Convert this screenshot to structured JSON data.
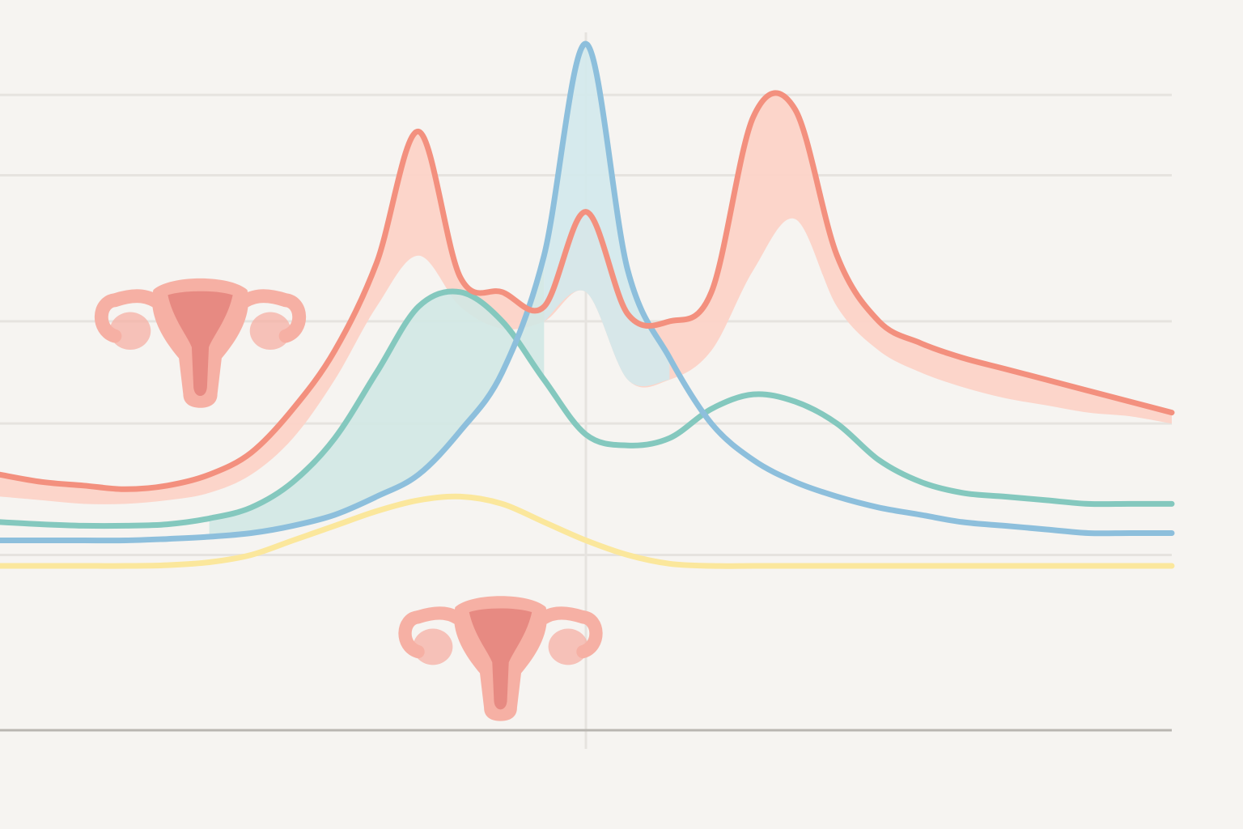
{
  "colors": {
    "background": "#f6f4f1",
    "gridline": "#e6e3df",
    "baseline": "#b9b6b1",
    "estrogen": "#f3907e",
    "estrogen_band": "#fcd3c7",
    "lh": "#8dbfdc",
    "lh_fill": "#d3e9ec",
    "progesterone": "#84c8be",
    "progesterone_fill": "#d2e8e4",
    "fsh": "#fbe79c",
    "uterus_outer": "#f6b0a4",
    "uterus_inner": "#e4847c"
  },
  "icons": [
    "uterus-icon",
    "uterus-icon"
  ],
  "chart_data": {
    "type": "line",
    "title": "",
    "xlabel": "",
    "ylabel": "",
    "xlim": [
      0,
      28
    ],
    "ylim": [
      0,
      100
    ],
    "grid": true,
    "legend": "none",
    "gridlines_y": [
      24,
      42,
      56,
      76,
      87
    ],
    "marker_x": 14,
    "x": [
      0,
      1,
      2,
      3,
      4,
      5,
      6,
      7,
      8,
      9,
      10,
      11,
      12,
      13,
      14,
      15,
      16,
      17,
      18,
      19,
      20,
      21,
      22,
      23,
      24,
      25,
      26,
      27,
      28
    ],
    "series": [
      {
        "key": "estrogen_upper",
        "values": [
          35,
          34,
          33.5,
          33,
          33.5,
          35,
          38,
          44,
          52,
          64,
          82,
          62,
          60,
          58,
          71,
          57,
          56,
          60,
          84,
          85,
          65,
          56,
          53,
          51,
          49.5,
          48,
          46.5,
          45,
          43.5
        ]
      },
      {
        "key": "estrogen_lower",
        "values": [
          32,
          31.5,
          31,
          31,
          31.5,
          32.5,
          35,
          40,
          48,
          58,
          65,
          58,
          55,
          56,
          60,
          48,
          48,
          52,
          63,
          70,
          58,
          52,
          49,
          47,
          45.5,
          44.5,
          43.5,
          43,
          42
        ]
      },
      {
        "key": "lh",
        "values": [
          26,
          26,
          26,
          26,
          26.2,
          26.5,
          27,
          28,
          29.5,
          32,
          35,
          41,
          49,
          65,
          94,
          63,
          51,
          42,
          37,
          34,
          32,
          30.5,
          29.5,
          28.5,
          28,
          27.5,
          27,
          27,
          27
        ]
      },
      {
        "key": "progesterone",
        "values": [
          28.5,
          28.2,
          28,
          28,
          28.2,
          29,
          30.5,
          34,
          40,
          49,
          58,
          60,
          56,
          48,
          40.5,
          39,
          40,
          44,
          46,
          45,
          42,
          37,
          34,
          32.5,
          32,
          31.5,
          31,
          31,
          31
        ]
      },
      {
        "key": "fsh",
        "values": [
          22.5,
          22.5,
          22.5,
          22.5,
          22.6,
          23,
          24,
          26,
          28,
          30,
          31.5,
          32,
          31,
          28.5,
          26,
          24,
          22.8,
          22.5,
          22.5,
          22.5,
          22.5,
          22.5,
          22.5,
          22.5,
          22.5,
          22.5,
          22.5,
          22.5,
          22.5
        ]
      }
    ]
  }
}
